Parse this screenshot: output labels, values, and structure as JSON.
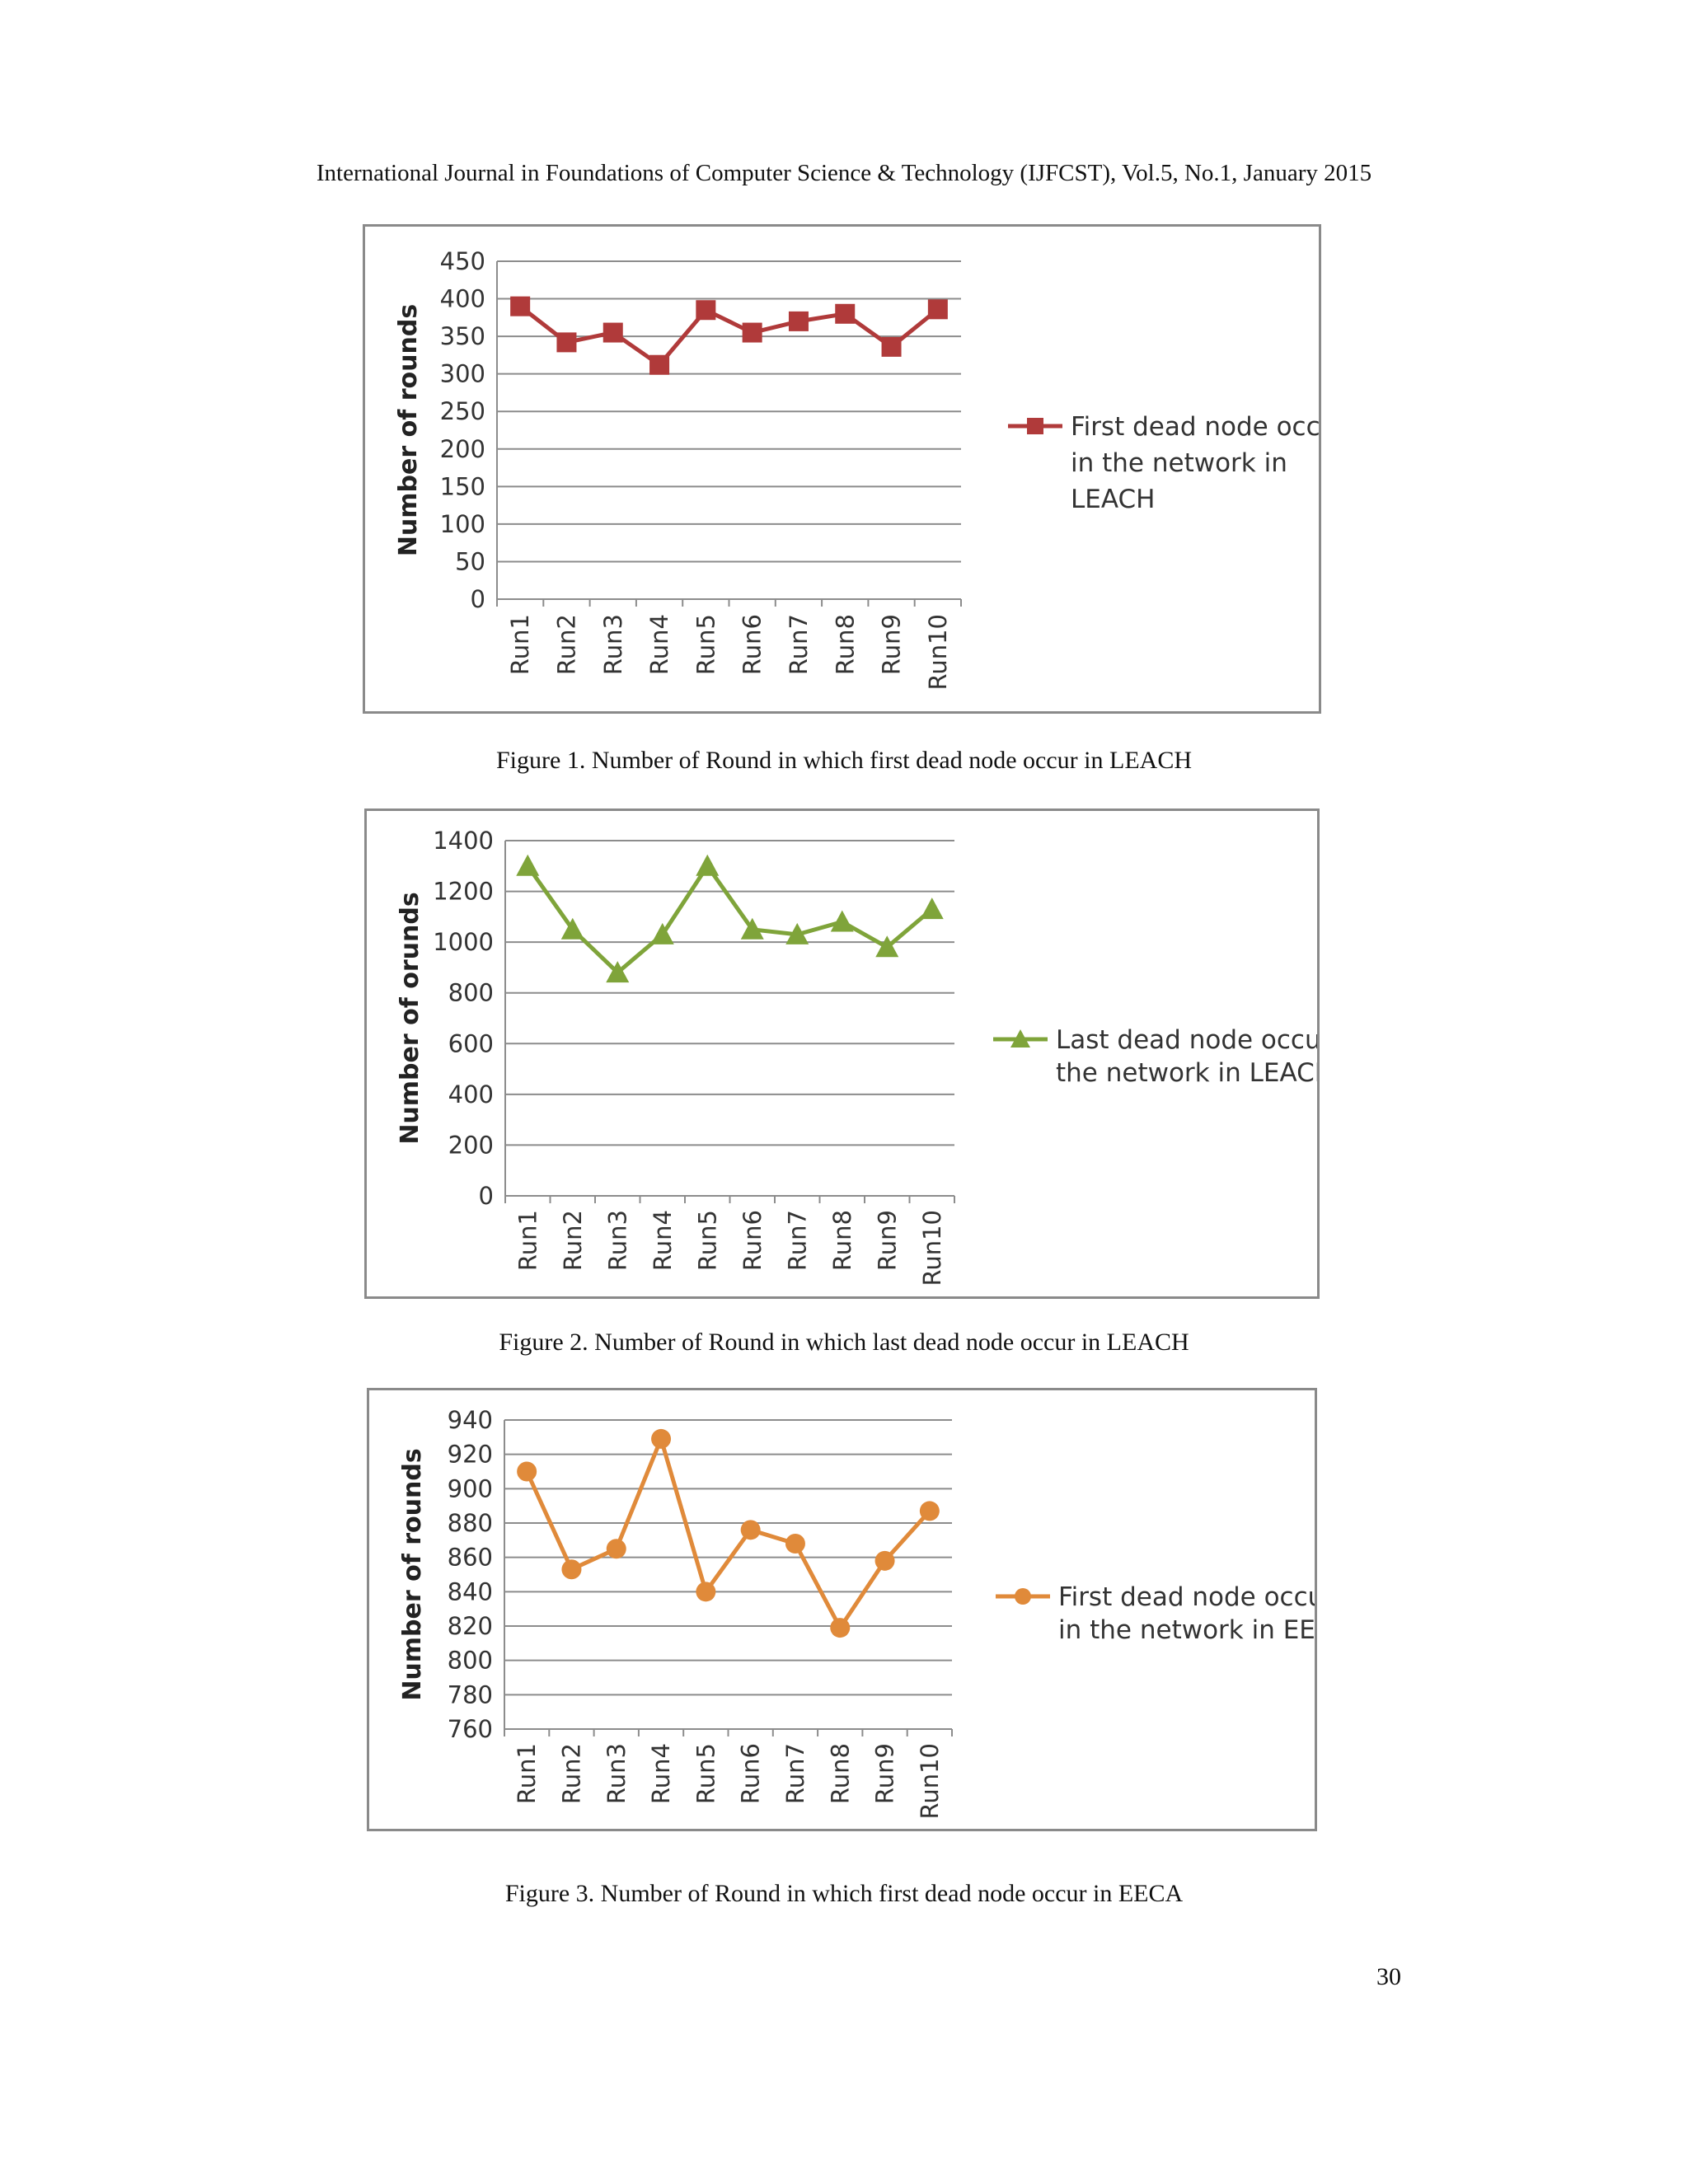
{
  "header": {
    "text": "International Journal in Foundations of Computer Science & Technology (IJFCST), Vol.5, No.1, January 2015"
  },
  "page_number": "30",
  "figures": [
    {
      "caption": "Figure 1. Number of Round in which first dead node occur in LEACH"
    },
    {
      "caption": "Figure 2. Number of Round in which last dead node occur in LEACH"
    },
    {
      "caption": "Figure 3. Number of Round in which first dead node occur in EECA"
    }
  ],
  "chart_data": [
    {
      "type": "line",
      "title": "",
      "xlabel": "",
      "ylabel": "Number of rounds",
      "categories": [
        "Run1",
        "Run2",
        "Run3",
        "Run4",
        "Run5",
        "Run6",
        "Run7",
        "Run8",
        "Run9",
        "Run10"
      ],
      "ylim": [
        0,
        450
      ],
      "yticks": [
        0,
        50,
        100,
        150,
        200,
        250,
        300,
        350,
        400,
        450
      ],
      "grid": true,
      "legend_position": "right",
      "series": [
        {
          "name": "First dead node occur in the network in LEACH",
          "legend_lines": [
            "First dead node occur",
            "in the network in",
            "LEACH"
          ],
          "values": [
            390,
            342,
            355,
            312,
            385,
            355,
            370,
            380,
            336,
            386
          ],
          "color": "#b03a3a",
          "marker": "square"
        }
      ]
    },
    {
      "type": "line",
      "title": "",
      "xlabel": "",
      "ylabel": "Number of orunds",
      "categories": [
        "Run1",
        "Run2",
        "Run3",
        "Run4",
        "Run5",
        "Run6",
        "Run7",
        "Run8",
        "Run9",
        "Run10"
      ],
      "ylim": [
        0,
        1400
      ],
      "yticks": [
        0,
        200,
        400,
        600,
        800,
        1000,
        1200,
        1400
      ],
      "grid": true,
      "legend_position": "right",
      "series": [
        {
          "name": "Last dead node occur in the network in LEACH",
          "legend_lines": [
            "Last dead node occur in",
            "the network in LEACH"
          ],
          "values": [
            1300,
            1050,
            880,
            1030,
            1300,
            1050,
            1030,
            1080,
            980,
            1130
          ],
          "color": "#7fa43a",
          "marker": "triangle"
        }
      ]
    },
    {
      "type": "line",
      "title": "",
      "xlabel": "",
      "ylabel": "Number of rounds",
      "categories": [
        "Run1",
        "Run2",
        "Run3",
        "Run4",
        "Run5",
        "Run6",
        "Run7",
        "Run8",
        "Run9",
        "Run10"
      ],
      "ylim": [
        760,
        940
      ],
      "yticks": [
        760,
        780,
        800,
        820,
        840,
        860,
        880,
        900,
        920,
        940
      ],
      "grid": true,
      "legend_position": "right",
      "series": [
        {
          "name": "First dead node occur in the network in EECA",
          "legend_lines": [
            "First dead node occur",
            "in the network in EECA"
          ],
          "values": [
            910,
            853,
            865,
            929,
            840,
            876,
            868,
            819,
            858,
            887
          ],
          "color": "#e08a3a",
          "marker": "circle"
        }
      ]
    }
  ]
}
